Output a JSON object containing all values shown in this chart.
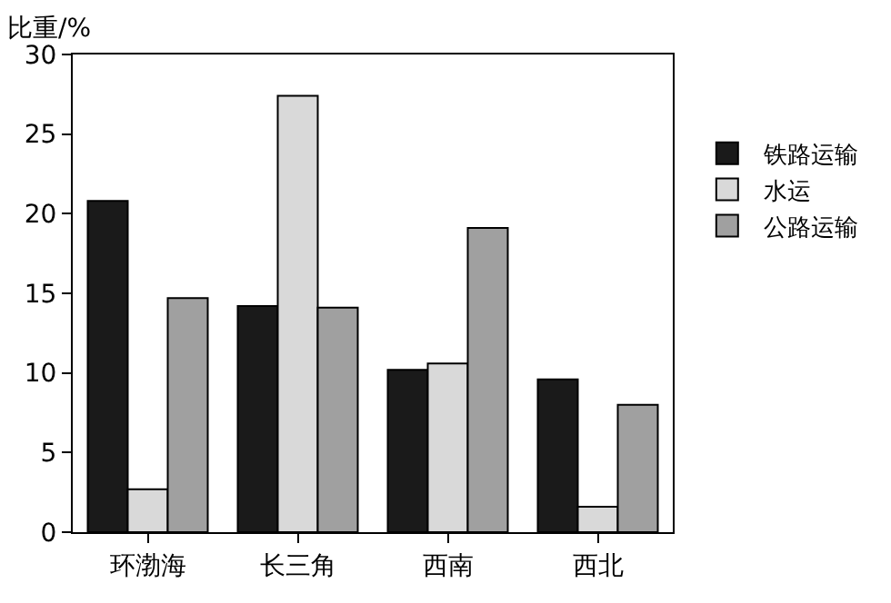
{
  "chart_data": {
    "type": "bar",
    "ylabel": "比重/%",
    "categories": [
      "环渤海",
      "长三角",
      "西南",
      "西北"
    ],
    "series": [
      {
        "name": "铁路运输",
        "color": "#1a1a1a",
        "values": [
          20.8,
          14.2,
          10.2,
          9.6
        ]
      },
      {
        "name": "水运",
        "color": "#d9d9d9",
        "values": [
          2.7,
          27.4,
          10.6,
          1.6
        ]
      },
      {
        "name": "公路运输",
        "color": "#a0a0a0",
        "values": [
          14.7,
          14.1,
          19.1,
          8.0
        ]
      }
    ],
    "ylim": [
      0,
      30
    ],
    "yticks": [
      0,
      5,
      10,
      15,
      20,
      25,
      30
    ],
    "legend": "right"
  }
}
